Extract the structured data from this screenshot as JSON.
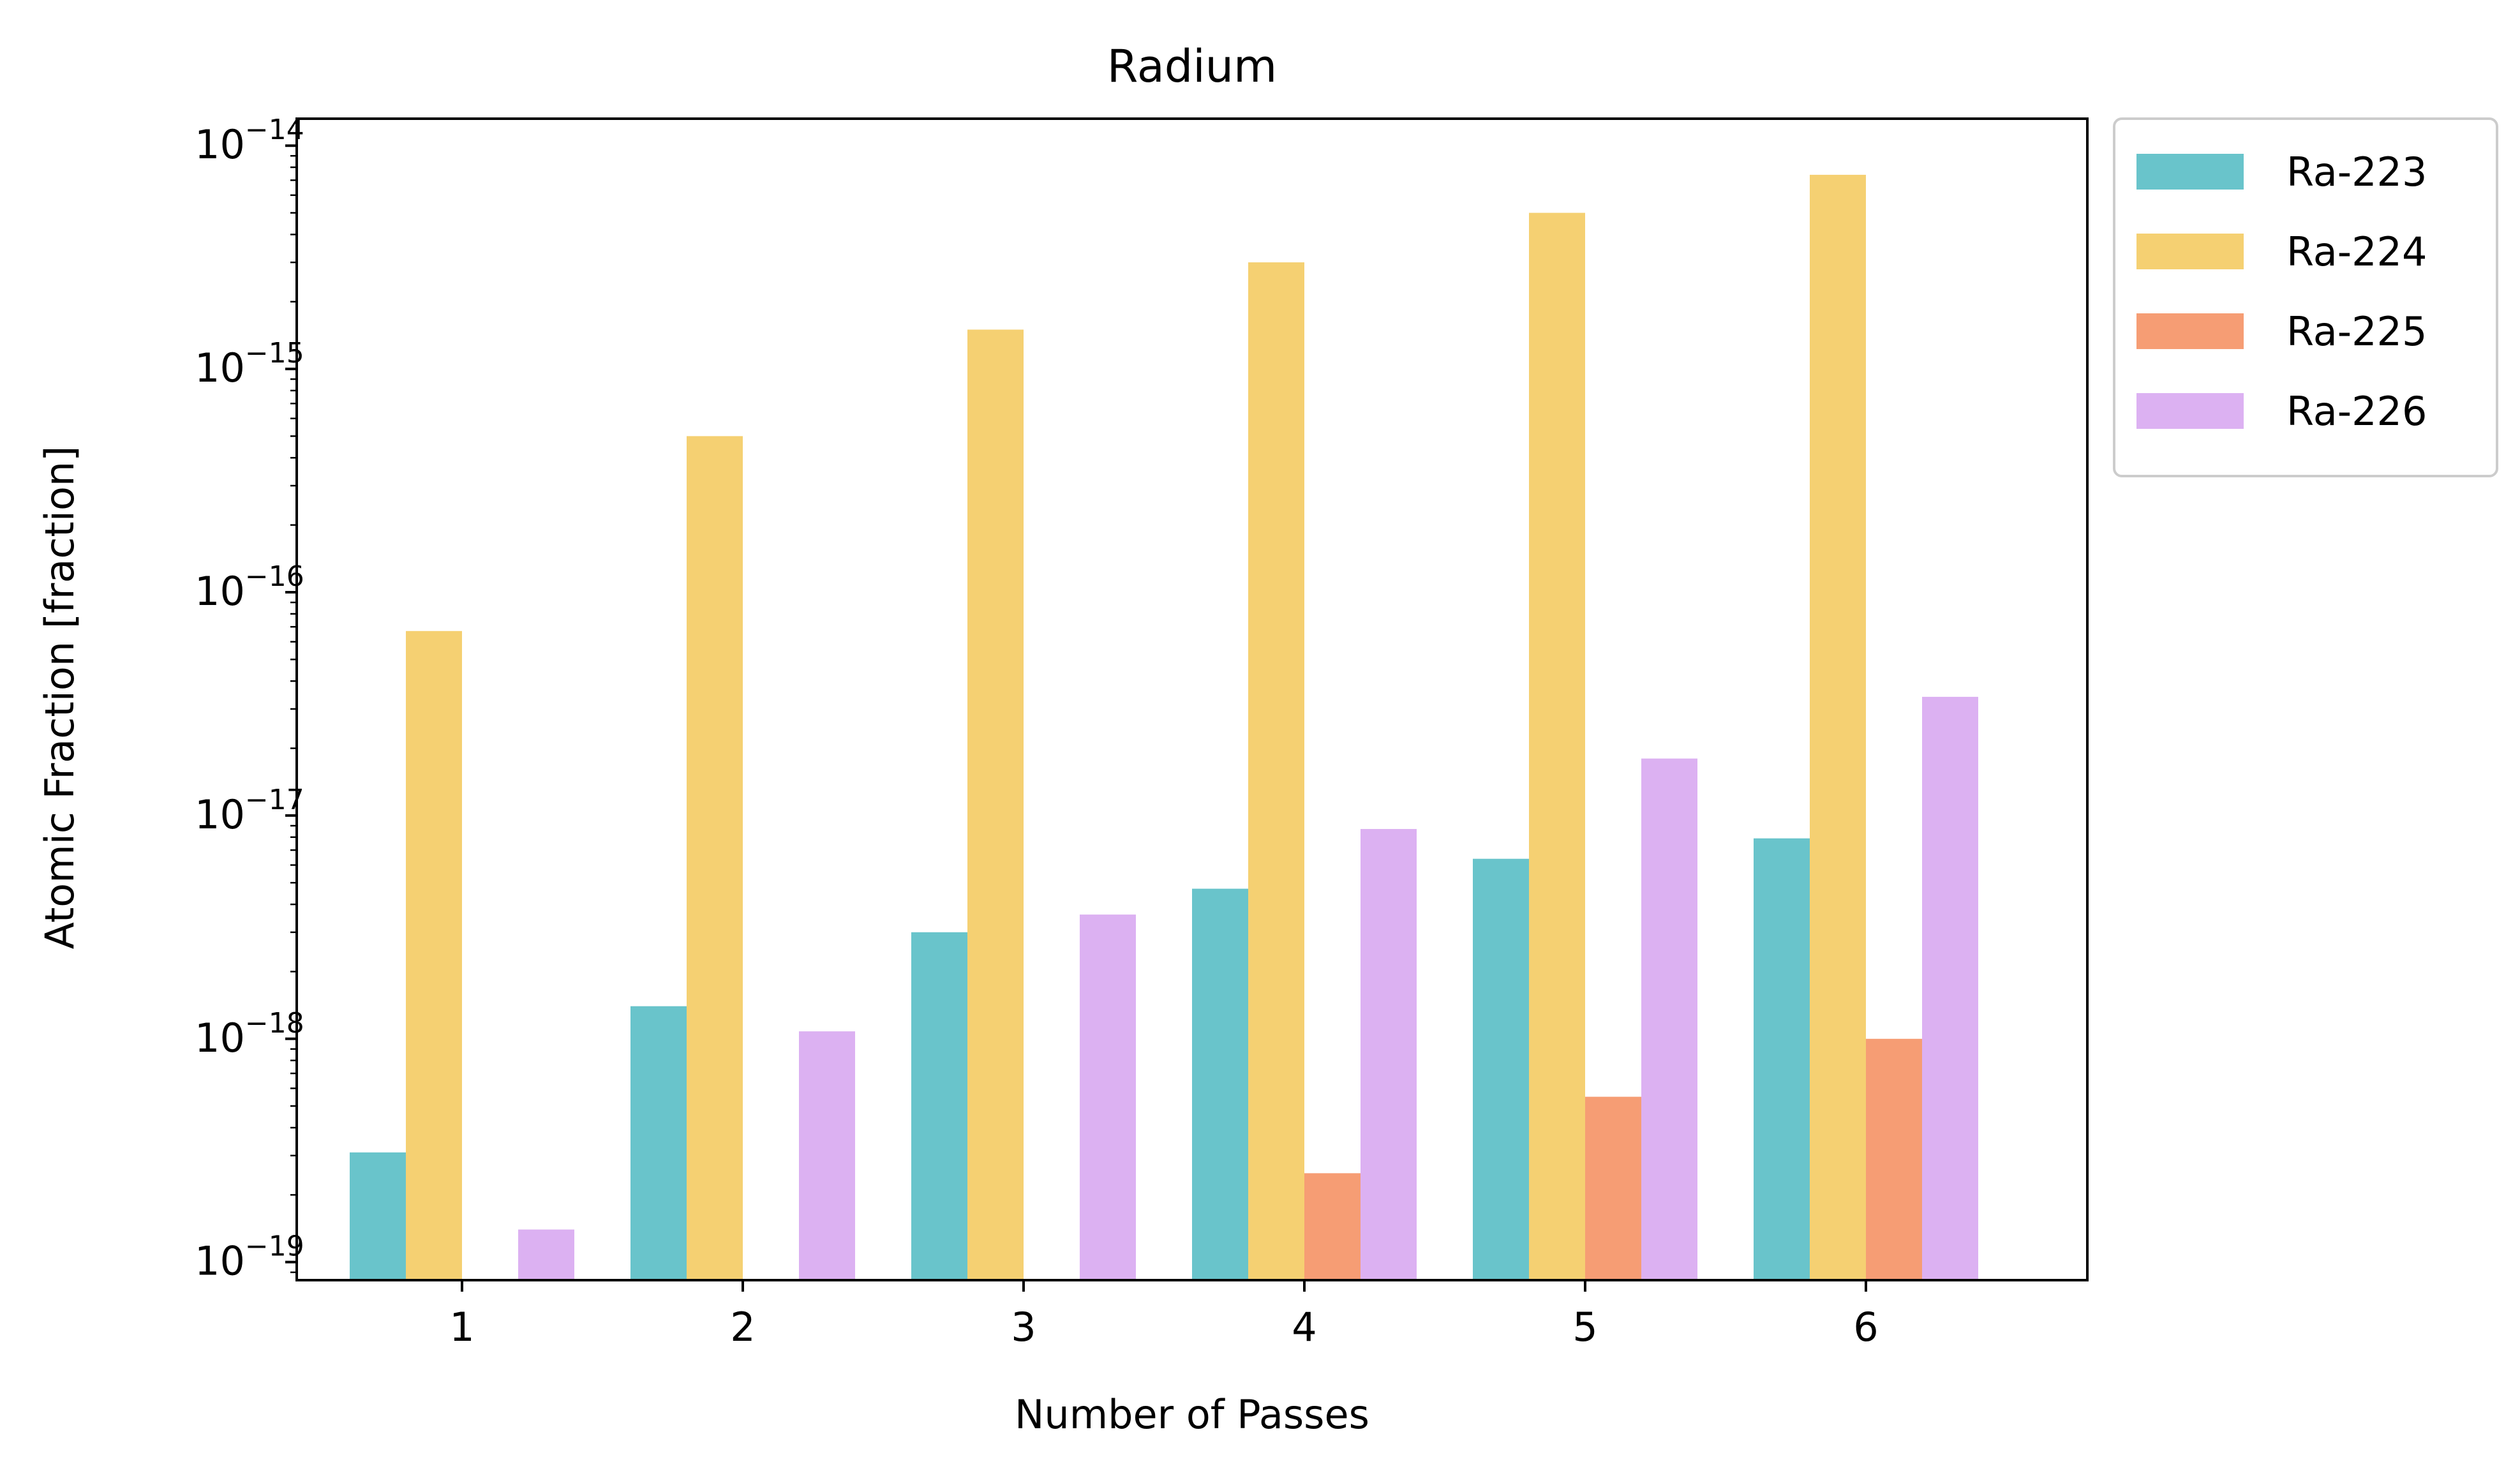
{
  "chart_data": {
    "type": "bar",
    "title": "Radium",
    "xlabel": "Number of Passes",
    "ylabel": "Atomic Fraction [fraction]",
    "yscale": "log",
    "ylim": [
      8.3e-20,
      1.32e-14
    ],
    "categories": [
      "1",
      "2",
      "3",
      "4",
      "5",
      "6"
    ],
    "y_ticks": [
      {
        "value": 1e-19,
        "base": "10",
        "exp": "−19"
      },
      {
        "value": 1e-18,
        "base": "10",
        "exp": "−18"
      },
      {
        "value": 1e-17,
        "base": "10",
        "exp": "−17"
      },
      {
        "value": 1e-16,
        "base": "10",
        "exp": "−16"
      },
      {
        "value": 1e-15,
        "base": "10",
        "exp": "−15"
      },
      {
        "value": 1e-14,
        "base": "10",
        "exp": "−14"
      }
    ],
    "legend_position": "outside-upper-right",
    "grid": false,
    "series": [
      {
        "name": "Ra-223",
        "color": "#69c4cb",
        "values": [
          3.1e-19,
          1.4e-18,
          3e-18,
          4.7e-18,
          6.4e-18,
          7.9e-18
        ]
      },
      {
        "name": "Ra-224",
        "color": "#f5d072",
        "values": [
          6.7e-17,
          5e-16,
          1.5e-15,
          3e-15,
          5e-15,
          7.4e-15
        ]
      },
      {
        "name": "Ra-225",
        "color": "#f69d74",
        "values": [
          null,
          null,
          null,
          2.5e-19,
          5.5e-19,
          1e-18
        ]
      },
      {
        "name": "Ra-226",
        "color": "#dcb1f2",
        "values": [
          1.4e-19,
          1.08e-18,
          3.6e-18,
          8.7e-18,
          1.8e-17,
          3.4e-17
        ]
      }
    ]
  }
}
